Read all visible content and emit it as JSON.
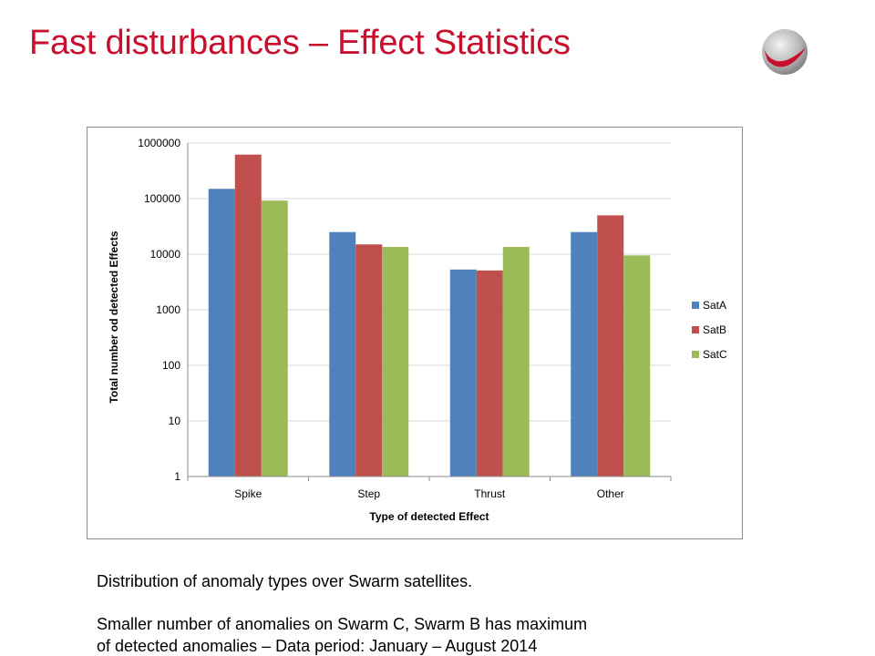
{
  "slide": {
    "title": "Fast disturbances – Effect Statistics",
    "caption_line1": "Distribution of anomaly types over Swarm satellites.",
    "caption_line2": "Smaller number of anomalies on Swarm C, Swarm B has maximum",
    "caption_line3": "of detected anomalies – Data period: January – August 2014"
  },
  "colors": {
    "title": "#c8102e",
    "SatA": "#4f81bd",
    "SatB": "#c0504d",
    "SatC": "#9bbb59",
    "gridline": "#d9d9d9",
    "frame": "#8c8c8c",
    "logo_red": "#c8102e",
    "logo_grey": "#8c8c8c"
  },
  "logo": {
    "icon": "swoosh-logo-icon"
  },
  "chart_data": {
    "type": "bar",
    "scale": "log",
    "xlabel": "Type of detected Effect",
    "ylabel": "Total number od detected Effects",
    "ylim": [
      1,
      1000000
    ],
    "y_ticks": [
      "1",
      "10",
      "100",
      "1000",
      "10000",
      "100000",
      "1000000"
    ],
    "grid": true,
    "legend_position": "right",
    "categories": [
      "Spike",
      "Step",
      "Thrust",
      "Other"
    ],
    "series": [
      {
        "name": "SatA",
        "values": [
          150000,
          25000,
          5300,
          25000
        ]
      },
      {
        "name": "SatB",
        "values": [
          620000,
          15000,
          5100,
          50000
        ]
      },
      {
        "name": "SatC",
        "values": [
          92000,
          13500,
          13500,
          9500
        ]
      }
    ]
  }
}
